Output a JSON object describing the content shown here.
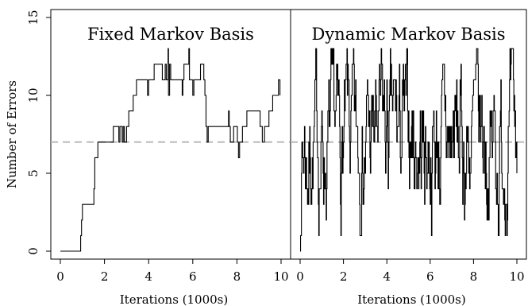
{
  "chart_data": [
    {
      "type": "line",
      "title": "Fixed Markov Basis",
      "xlabel": "Iterations (1000s)",
      "ylabel": "Number of Errors",
      "xlim": [
        0,
        10
      ],
      "ylim": [
        0,
        15
      ],
      "xticks": [
        0,
        2,
        4,
        6,
        8,
        10
      ],
      "yticks": [
        0,
        5,
        10,
        15
      ],
      "reference_line": {
        "y": 7,
        "style": "dashed",
        "color": "#bbbbbb"
      },
      "series": [
        {
          "color": "#000000",
          "step_points": [
            [
              0,
              0
            ],
            [
              0.9,
              0
            ],
            [
              0.92,
              1
            ],
            [
              0.96,
              2
            ],
            [
              1.0,
              3
            ],
            [
              1.5,
              3
            ],
            [
              1.52,
              4
            ],
            [
              1.56,
              6
            ],
            [
              1.7,
              7
            ],
            [
              2.3,
              7
            ],
            [
              2.4,
              8
            ],
            [
              2.6,
              8
            ],
            [
              2.65,
              7
            ],
            [
              2.7,
              8
            ],
            [
              2.8,
              7
            ],
            [
              2.85,
              8
            ],
            [
              2.9,
              7
            ],
            [
              3.0,
              8
            ],
            [
              3.1,
              9
            ],
            [
              3.25,
              9
            ],
            [
              3.3,
              10
            ],
            [
              3.4,
              10
            ],
            [
              3.45,
              11
            ],
            [
              3.9,
              11
            ],
            [
              3.95,
              10
            ],
            [
              4.0,
              11
            ],
            [
              4.2,
              11
            ],
            [
              4.25,
              12
            ],
            [
              4.6,
              12
            ],
            [
              4.62,
              11
            ],
            [
              4.7,
              11
            ],
            [
              4.75,
              12
            ],
            [
              4.8,
              11
            ],
            [
              4.88,
              13
            ],
            [
              4.9,
              10
            ],
            [
              4.95,
              12
            ],
            [
              5.0,
              11
            ],
            [
              5.5,
              11
            ],
            [
              5.52,
              10
            ],
            [
              5.55,
              11
            ],
            [
              5.6,
              12
            ],
            [
              5.8,
              12
            ],
            [
              5.82,
              13
            ],
            [
              5.85,
              11
            ],
            [
              5.95,
              11
            ],
            [
              6.0,
              10
            ],
            [
              6.05,
              11
            ],
            [
              6.3,
              11
            ],
            [
              6.35,
              12
            ],
            [
              6.45,
              12
            ],
            [
              6.5,
              11
            ],
            [
              6.55,
              10
            ],
            [
              6.6,
              8
            ],
            [
              6.65,
              7
            ],
            [
              6.7,
              8
            ],
            [
              7.6,
              8
            ],
            [
              7.62,
              9
            ],
            [
              7.65,
              8
            ],
            [
              7.7,
              7
            ],
            [
              7.8,
              7
            ],
            [
              7.85,
              8
            ],
            [
              8.0,
              8
            ],
            [
              8.02,
              7
            ],
            [
              8.07,
              6
            ],
            [
              8.12,
              7
            ],
            [
              8.2,
              7
            ],
            [
              8.25,
              8
            ],
            [
              8.4,
              8
            ],
            [
              8.45,
              9
            ],
            [
              9.0,
              9
            ],
            [
              9.05,
              8
            ],
            [
              9.15,
              7
            ],
            [
              9.25,
              8
            ],
            [
              9.4,
              8
            ],
            [
              9.45,
              9
            ],
            [
              9.6,
              9
            ],
            [
              9.62,
              10
            ],
            [
              9.85,
              10
            ],
            [
              9.88,
              11
            ],
            [
              9.95,
              10
            ]
          ]
        }
      ]
    },
    {
      "type": "line",
      "title": "Dynamic Markov Basis",
      "xlabel": "Iterations (1000s)",
      "ylabel": "",
      "xlim": [
        0,
        10
      ],
      "ylim": [
        0,
        15
      ],
      "xticks": [
        0,
        2,
        4,
        6,
        8,
        10
      ],
      "yticks": [],
      "reference_line": {
        "y": 7,
        "style": "dashed",
        "color": "#bbbbbb"
      },
      "series": [
        {
          "color": "#000000",
          "generator": {
            "start_value": 0,
            "step": 0.02,
            "min": 1,
            "max": 13,
            "center": 7,
            "mean_reversion": 0.22,
            "jitter": 3,
            "seed": 7
          }
        }
      ]
    }
  ]
}
